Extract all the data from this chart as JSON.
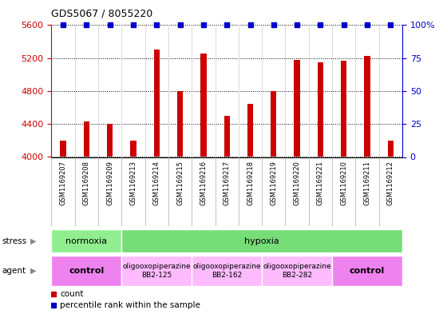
{
  "title": "GDS5067 / 8055220",
  "samples": [
    "GSM1169207",
    "GSM1169208",
    "GSM1169209",
    "GSM1169213",
    "GSM1169214",
    "GSM1169215",
    "GSM1169216",
    "GSM1169217",
    "GSM1169218",
    "GSM1169219",
    "GSM1169220",
    "GSM1169221",
    "GSM1169210",
    "GSM1169211",
    "GSM1169212"
  ],
  "counts": [
    4200,
    4430,
    4400,
    4200,
    5300,
    4800,
    5260,
    4500,
    4640,
    4800,
    5180,
    5150,
    5170,
    5230,
    4200
  ],
  "percentile_ranks": [
    100,
    100,
    100,
    100,
    100,
    100,
    100,
    100,
    100,
    100,
    100,
    100,
    100,
    100,
    100
  ],
  "bar_color": "#cc0000",
  "percentile_color": "#0000cc",
  "ylim_left": [
    4000,
    5600
  ],
  "ylim_right": [
    0,
    100
  ],
  "yticks_left": [
    4000,
    4400,
    4800,
    5200,
    5600
  ],
  "yticks_right": [
    0,
    25,
    50,
    75,
    100
  ],
  "stress_groups": [
    {
      "label": "normoxia",
      "start": 0,
      "end": 3,
      "color": "#90ee90"
    },
    {
      "label": "hypoxia",
      "start": 3,
      "end": 15,
      "color": "#77dd77"
    }
  ],
  "agent_groups": [
    {
      "label": "control",
      "start": 0,
      "end": 3,
      "color": "#ee82ee",
      "fontsize": 8,
      "bold": true
    },
    {
      "label": "oligooxopiperazine\nBB2-125",
      "start": 3,
      "end": 6,
      "color": "#ffbbff",
      "fontsize": 6.5,
      "bold": false
    },
    {
      "label": "oligooxopiperazine\nBB2-162",
      "start": 6,
      "end": 9,
      "color": "#ffbbff",
      "fontsize": 6.5,
      "bold": false
    },
    {
      "label": "oligooxopiperazine\nBB2-282",
      "start": 9,
      "end": 12,
      "color": "#ffbbff",
      "fontsize": 6.5,
      "bold": false
    },
    {
      "label": "control",
      "start": 12,
      "end": 15,
      "color": "#ee82ee",
      "fontsize": 8,
      "bold": true
    }
  ],
  "chart_bg": "#ffffff",
  "xtick_bg": "#d8d8d8",
  "grid_color": "#000000",
  "tick_color_left": "#cc0000",
  "tick_color_right": "#0000cc",
  "bar_width": 0.25
}
